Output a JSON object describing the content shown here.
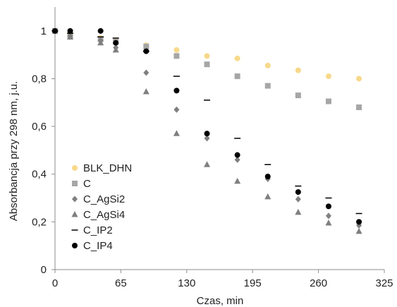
{
  "chart_data": {
    "type": "scatter",
    "title": "",
    "xlabel": "Czas, min",
    "ylabel": "Absorbancja przy 298 nm, j.u.",
    "xlim": [
      0,
      325
    ],
    "ylim": [
      0,
      1.1
    ],
    "x_ticks": [
      0,
      65,
      130,
      195,
      260,
      325
    ],
    "x_tick_labels": [
      "0",
      "65",
      "130",
      "195",
      "260",
      "325"
    ],
    "y_ticks": [
      0,
      0.2,
      0.4,
      0.6,
      0.8,
      1
    ],
    "y_tick_labels": [
      "0",
      "0,2",
      "0,4",
      "0,6",
      "0,8",
      "1"
    ],
    "grid": false,
    "legend_position": "lower-left",
    "series": [
      {
        "name": "BLK_DHN",
        "marker": "circle",
        "color": "#f7d98b",
        "x": [
          0,
          15,
          45,
          60,
          90,
          120,
          150,
          180,
          210,
          240,
          270,
          300
        ],
        "y": [
          1.0,
          0.99,
          0.97,
          0.96,
          0.94,
          0.92,
          0.895,
          0.885,
          0.855,
          0.835,
          0.81,
          0.8
        ]
      },
      {
        "name": "C",
        "marker": "square",
        "color": "#a6a6a6",
        "x": [
          0,
          15,
          45,
          60,
          90,
          120,
          150,
          180,
          210,
          240,
          270,
          300
        ],
        "y": [
          1.0,
          0.975,
          0.965,
          0.955,
          0.935,
          0.895,
          0.86,
          0.81,
          0.77,
          0.73,
          0.705,
          0.68
        ]
      },
      {
        "name": "C_AgSi2",
        "marker": "diamond",
        "color": "#7f7f7f",
        "x": [
          0,
          15,
          45,
          60,
          90,
          120,
          150,
          180,
          210,
          240,
          270,
          300
        ],
        "y": [
          1.0,
          0.98,
          0.96,
          0.93,
          0.825,
          0.67,
          0.55,
          0.46,
          0.38,
          0.295,
          0.225,
          0.185
        ]
      },
      {
        "name": "C_AgSi4",
        "marker": "triangle",
        "color": "#7f7f7f",
        "x": [
          0,
          15,
          45,
          60,
          90,
          120,
          150,
          180,
          210,
          240,
          270,
          300
        ],
        "y": [
          1.0,
          0.975,
          0.95,
          0.92,
          0.745,
          0.57,
          0.44,
          0.37,
          0.305,
          0.24,
          0.195,
          0.16
        ]
      },
      {
        "name": "C_IP2",
        "marker": "dash",
        "color": "#000000",
        "x": [
          0,
          15,
          45,
          60,
          90,
          120,
          150,
          180,
          210,
          240,
          270,
          300
        ],
        "y": [
          1.0,
          0.99,
          0.975,
          0.97,
          0.915,
          0.81,
          0.71,
          0.55,
          0.44,
          0.35,
          0.3,
          0.235
        ]
      },
      {
        "name": "C_IP4",
        "marker": "circle",
        "color": "#000000",
        "x": [
          0,
          15,
          45,
          60,
          90,
          120,
          150,
          180,
          210,
          240,
          270,
          300
        ],
        "y": [
          1.0,
          1.0,
          1.0,
          0.95,
          0.915,
          0.75,
          0.57,
          0.48,
          0.39,
          0.325,
          0.265,
          0.2
        ]
      }
    ]
  }
}
